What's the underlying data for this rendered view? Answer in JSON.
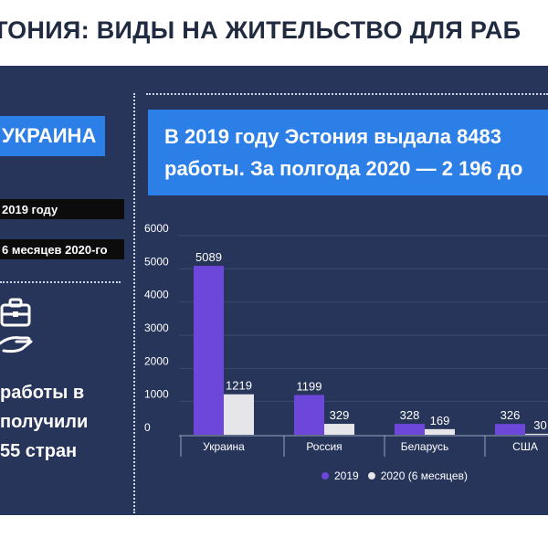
{
  "header": {
    "title": "ТОНИЯ: ВИДЫ НА ЖИТЕЛЬСТВО ДЛЯ РАБ"
  },
  "left_panel": {
    "country": "УКРАИНА",
    "year_label": "2019 году",
    "half_year_label": "6 месяцев 2020-го",
    "icon": "briefcase-hand-icon",
    "text_lines": [
      "работы в",
      "получили",
      "55 стран"
    ]
  },
  "headline": {
    "line1": "В 2019 году Эстония выдала 8483",
    "line2": "работы. За полгода 2020 — 2 196 до"
  },
  "chart_data": {
    "type": "bar",
    "categories": [
      "Украина",
      "Россия",
      "Беларусь",
      "США"
    ],
    "series": [
      {
        "name": "2019",
        "values": [
          5089,
          1199,
          328,
          326
        ],
        "labels": [
          "5089",
          "1199",
          "328",
          "326"
        ],
        "color": "#6c47d9"
      },
      {
        "name": "2020 (6 месяцев)",
        "values": [
          1219,
          329,
          169,
          30
        ],
        "labels": [
          "1219",
          "329",
          "169",
          "30"
        ],
        "color": "#e6e6ea"
      }
    ],
    "ylim": [
      0,
      6000
    ],
    "yticks": [
      "0",
      "1000",
      "2000",
      "3000",
      "4000",
      "5000",
      "6000"
    ],
    "grid": true,
    "legend": "bottom",
    "title": "",
    "xlabel": "",
    "ylabel": ""
  },
  "colors": {
    "background": "#27355a",
    "accent_blue": "#2c7fe6",
    "bar_2019": "#6c47d9",
    "bar_2020": "#e6e6ea",
    "title_text": "#202a40"
  }
}
